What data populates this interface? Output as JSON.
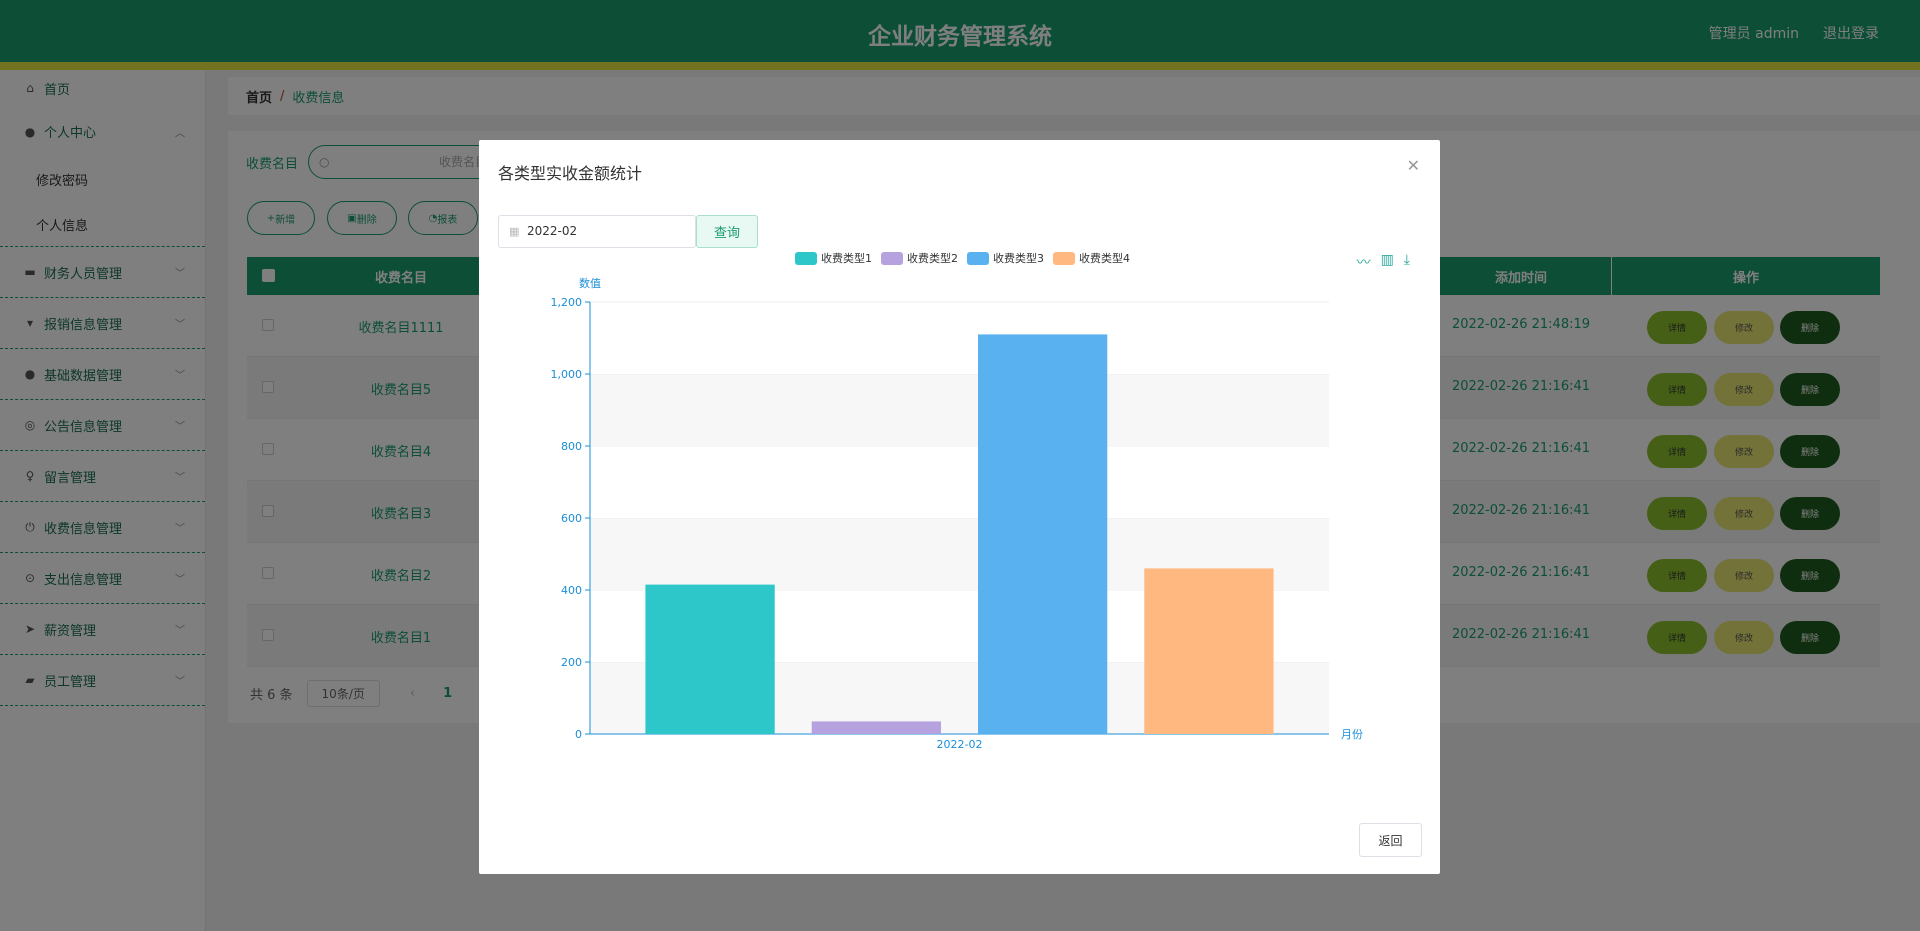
{
  "header": {
    "title": "企业财务管理系统",
    "user": "管理员 admin",
    "logout": "退出登录"
  },
  "sidebar": {
    "home": "首页",
    "groups": [
      {
        "label": "个人中心",
        "sub": [
          "修改密码",
          "个人信息"
        ]
      },
      {
        "label": "财务人员管理"
      },
      {
        "label": "报销信息管理"
      },
      {
        "label": "基础数据管理"
      },
      {
        "label": "公告信息管理"
      },
      {
        "label": "留言管理"
      },
      {
        "label": "收费信息管理"
      },
      {
        "label": "支出信息管理"
      },
      {
        "label": "薪资管理"
      },
      {
        "label": "员工管理"
      }
    ]
  },
  "breadcrumb": {
    "home": "首页",
    "sep": "/",
    "current": "收费信息"
  },
  "search": {
    "label": "收费名目",
    "placeholder": "收费名目"
  },
  "toolbar": {
    "add": "新增",
    "delete": "删除",
    "report": "报表"
  },
  "table": {
    "headers": {
      "name": "收费名目",
      "time": "添加时间",
      "ops": "操作"
    },
    "rows": [
      {
        "name": "收费名目1111",
        "time": "2022-02-26 21:48:19"
      },
      {
        "name": "收费名目5",
        "time": "2022-02-26 21:16:41"
      },
      {
        "name": "收费名目4",
        "time": "2022-02-26 21:16:41"
      },
      {
        "name": "收费名目3",
        "time": "2022-02-26 21:16:41"
      },
      {
        "name": "收费名目2",
        "time": "2022-02-26 21:16:41"
      },
      {
        "name": "收费名目1",
        "time": "2022-02-26 21:16:41"
      }
    ],
    "row_buttons": {
      "detail": "详情",
      "edit": "修改",
      "delete": "删除"
    }
  },
  "pagination": {
    "total": "共 6 条",
    "page_size": "10条/页",
    "current_page": "1"
  },
  "dialog": {
    "title": "各类型实收金额统计",
    "date_value": "2022-02",
    "query": "查询",
    "back": "返回"
  },
  "colors": {
    "primary": "#1a9d6f",
    "stripe": "#e4e542"
  },
  "chart_data": {
    "type": "bar",
    "categories": [
      "2022-02"
    ],
    "series": [
      {
        "name": "收费类型1",
        "values": [
          415
        ],
        "color": "#2ec7c9"
      },
      {
        "name": "收费类型2",
        "values": [
          35
        ],
        "color": "#b6a2de"
      },
      {
        "name": "收费类型3",
        "values": [
          1110
        ],
        "color": "#5ab1ef"
      },
      {
        "name": "收费类型4",
        "values": [
          460
        ],
        "color": "#ffb980"
      }
    ],
    "xlabel": "月份",
    "ylabel": "数值",
    "ylim": [
      0,
      1200
    ],
    "yticks": [
      "0",
      "200",
      "400",
      "600",
      "800",
      "1,000",
      "1,200"
    ],
    "legend_position": "top-center",
    "grid": true
  }
}
